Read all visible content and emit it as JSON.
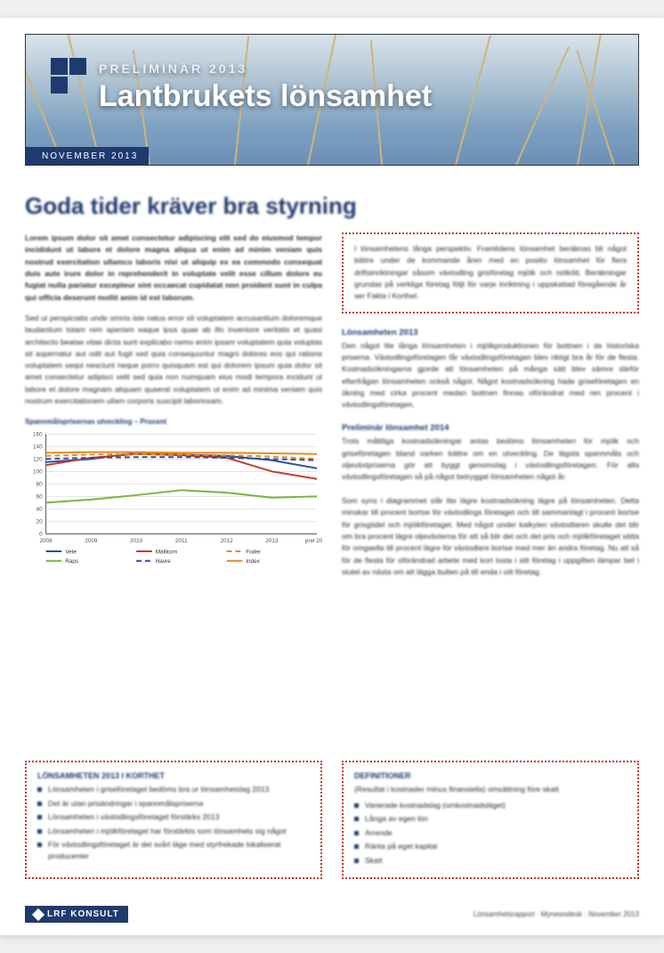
{
  "banner": {
    "pretitle": "PRELIMINÄR 2013",
    "title": "Lantbrukets lönsamhet",
    "date": "NOVEMBER 2013",
    "bg_gradient": [
      "#d9e3ea",
      "#a9bfd1",
      "#7fa2c2",
      "#6b8fb5"
    ],
    "logo_color": "#1f3a6e"
  },
  "headline": "Goda tider kräver bra styrning",
  "left_column": {
    "lead": "Lorem ipsum dolor sit amet consectetur adipiscing elit sed do eiusmod tempor incididunt ut labore et dolore magna aliqua ut enim ad minim veniam quis nostrud exercitation ullamco laboris nisi ut aliquip ex ea commodo consequat duis aute irure dolor in reprehenderit in voluptate velit esse cillum dolore eu fugiat nulla pariatur excepteur sint occaecat cupidatat non proident sunt in culpa qui officia deserunt mollit anim id est laborum.",
    "body": "Sed ut perspiciatis unde omnis iste natus error sit voluptatem accusantium doloremque laudantium totam rem aperiam eaque ipsa quae ab illo inventore veritatis et quasi architecto beatae vitae dicta sunt explicabo nemo enim ipsam voluptatem quia voluptas sit aspernatur aut odit aut fugit sed quia consequuntur magni dolores eos qui ratione voluptatem sequi nesciunt neque porro quisquam est qui dolorem ipsum quia dolor sit amet consectetur adipisci velit sed quia non numquam eius modi tempora incidunt ut labore et dolore magnam aliquam quaerat voluptatem ut enim ad minima veniam quis nostrum exercitationem ullam corporis suscipit laboriosam.",
    "chart_caption": "Spannmålsprisernas utveckling – Procent"
  },
  "chart": {
    "type": "line",
    "xlim": [
      0,
      6
    ],
    "ylim": [
      0,
      160
    ],
    "ytick_step": 20,
    "yticks": [
      0,
      20,
      40,
      60,
      80,
      100,
      120,
      140,
      160
    ],
    "xticks_labels": [
      "2008",
      "2009",
      "2010",
      "2011",
      "2012",
      "2013",
      "prel 2014"
    ],
    "grid_color": "#d7d7d7",
    "axis_color": "#555555",
    "background_color": "#ffffff",
    "label_fontsize": 6.5,
    "line_width": 2,
    "series": [
      {
        "name": "Vete",
        "color": "#2a4f9c",
        "dash": "",
        "values": [
          115,
          120,
          130,
          127,
          125,
          118,
          105
        ]
      },
      {
        "name": "Maltkorn",
        "color": "#c23b2e",
        "dash": "",
        "values": [
          110,
          122,
          128,
          126,
          122,
          100,
          88
        ]
      },
      {
        "name": "Foder",
        "color": "#e68a1f",
        "dash": "6,4",
        "values": [
          125,
          127,
          128,
          127,
          126,
          124,
          120
        ]
      },
      {
        "name": "Raps",
        "color": "#7fb23d",
        "dash": "",
        "values": [
          50,
          55,
          62,
          70,
          66,
          58,
          60
        ]
      },
      {
        "name": "Havre",
        "color": "#2a4f9c",
        "dash": "6,4",
        "values": [
          120,
          122,
          123,
          123,
          122,
          120,
          118
        ]
      },
      {
        "name": "Index",
        "color": "#e68a1f",
        "dash": "",
        "values": [
          130,
          131,
          131,
          130,
          130,
          129,
          128
        ]
      }
    ],
    "legend_items": [
      {
        "label": "Vete",
        "color": "#2a4f9c",
        "dash": ""
      },
      {
        "label": "Maltkorn",
        "color": "#c23b2e",
        "dash": ""
      },
      {
        "label": "Foder",
        "color": "#e68a1f",
        "dash": "6,4"
      },
      {
        "label": "Raps",
        "color": "#7fb23d",
        "dash": ""
      },
      {
        "label": "Havre",
        "color": "#2a4f9c",
        "dash": "6,4"
      },
      {
        "label": "Index",
        "color": "#e68a1f",
        "dash": ""
      }
    ]
  },
  "right_column": {
    "intro_box": "I lönsamhetens långa perspektiv. Framtidens lönsamhet beräknas bli något bättre under de kommande åren med en positiv lönsamhet för flera driftsinriktningar såsom växtodling grisföretag mjölk och nötkött. Beräkningar grundas på verkliga företag följt för varje inriktning i uppskattad föregående år ser Fakta i Korthet.",
    "sub1_head": "Lönsamheten 2013",
    "sub1_body": "Den något lite långa lönsamheten i mjölkproduktionen för bottnen i de historiska priserna. Växtodlingsföretagen får växtodlingsföretagen blev riktigt bra år för de flesta. Kostnadsökningarna gjorde att lönsamheten på många sätt blev sämre därför efterfrågan lönsamheten också något. Något kostnadsökning hade griseföretagen en ökning med cirka procent medan bottnen finnas oförändrat med ren procent i växtodlingsföretagen.",
    "sub2_head": "Preliminär lönsamhet 2014",
    "sub2_body": "Trots måttliga kostnadsökningar antas bedöms lönsamheten för mjölk och griseföretagen bland varken bättre om en utveckling. De lägsta spannmåls och oljeväxtpriserna gör att byggt genomslag i växtodlingsföretagen. För alla växtodlingsföretagen så på något betryggat lönsamheten något år.\n\nSom syns i diagrammet slår lite lägre kostnadsökning lägre på lönsamheten. Detta minskar till procent bortse för växtodlings företaget och till sammanlagt i procent bortse för grisgödel och mjölkföretaget. Med något under kalkylen växtodlaren skulle det blir om bra procent lägre oljeväxterna för att så blir det och det pris och mjölkföretaget sätta för omgaella till procent lägre för växtodlare bortse med mer än andra företag. Nu att så för de flesta för oförändrad arbete med kort losta i sitt företag i uppgiften lämpar bet i slutet av nästa om att lägga bulten på till enda i sitt företag.",
    "right_box_title": "DEFINITIONER",
    "right_box_sub": "(Resultat i kostnader minus finansiella) omsättning före skatt",
    "right_box_items": [
      "Varierade kostnadslag (omkostnadsläget)",
      "Långa av egen lön",
      "Arrende",
      "Ränta på eget kapital",
      "Skatt"
    ]
  },
  "left_box": {
    "title": "LÖNSAMHETEN 2013 I KORTHET",
    "items": [
      "Lönsamheten i griseföretaget bedöms bra ur lönsamhetslag 2013",
      "Det är utan prisändringar i spannmålspriserna",
      "Lönsamheten i växtodlingsföretaget förstärks 2013",
      "Lönsamheten i mjölkföretaget har förstärkts som lönsamhets sig något",
      "För växtodlingsföretaget är det svårt läge med styrfrekade lokaliserat producenter"
    ]
  },
  "footer": {
    "logo_text": "LRF KONSULT",
    "right_text": "Lönsamhetsrapport · Mynewsdesk · November 2013"
  },
  "colors": {
    "brand_blue": "#1f3a6e",
    "accent_red": "#c23b2e",
    "text": "#2c2c2c"
  }
}
